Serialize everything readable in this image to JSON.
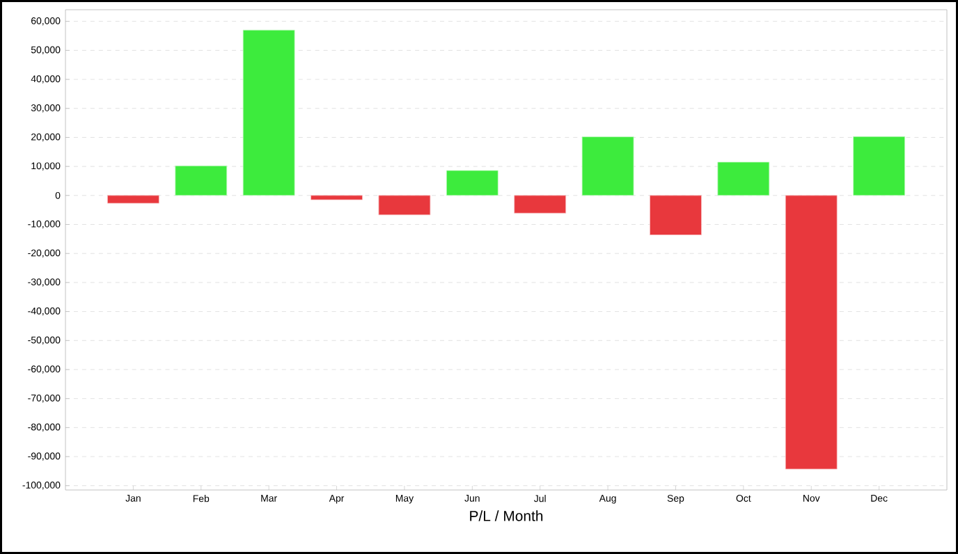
{
  "chart_data": {
    "type": "bar",
    "xlabel": "P/L / Month",
    "categories": [
      "Jan",
      "Feb",
      "Mar",
      "Apr",
      "May",
      "Jun",
      "Jul",
      "Aug",
      "Sep",
      "Oct",
      "Nov",
      "Dec"
    ],
    "values": [
      -2700,
      10200,
      57000,
      -1500,
      -6700,
      8600,
      -6100,
      20200,
      -13600,
      11500,
      -94300,
      20300
    ],
    "colors": [
      "#e8383d",
      "#3deb3d",
      "#3deb3d",
      "#e8383d",
      "#e8383d",
      "#3deb3d",
      "#e8383d",
      "#3deb3d",
      "#e8383d",
      "#3deb3d",
      "#e8383d",
      "#3deb3d"
    ],
    "ylim": [
      -101500,
      64000
    ],
    "yticks": [
      {
        "value": 60000,
        "label": "60,000"
      },
      {
        "value": 50000,
        "label": "50,000"
      },
      {
        "value": 40000,
        "label": "40,000"
      },
      {
        "value": 30000,
        "label": "30,000"
      },
      {
        "value": 20000,
        "label": "20,000"
      },
      {
        "value": 10000,
        "label": "10,000"
      },
      0,
      {
        "value": -10000,
        "label": "-10,000"
      },
      {
        "value": -20000,
        "label": "-20,000"
      },
      {
        "value": -30000,
        "label": "-30,000"
      },
      {
        "value": -40000,
        "label": "-40,000"
      },
      {
        "value": -50000,
        "label": "-50,000"
      },
      {
        "value": -60000,
        "label": "-60,000"
      },
      {
        "value": -70000,
        "label": "-70,000"
      },
      {
        "value": -80000,
        "label": "-80,000"
      },
      {
        "value": -90000,
        "label": "-90,000"
      },
      {
        "value": -100000,
        "label": "-100,000"
      }
    ],
    "grid": "y"
  }
}
